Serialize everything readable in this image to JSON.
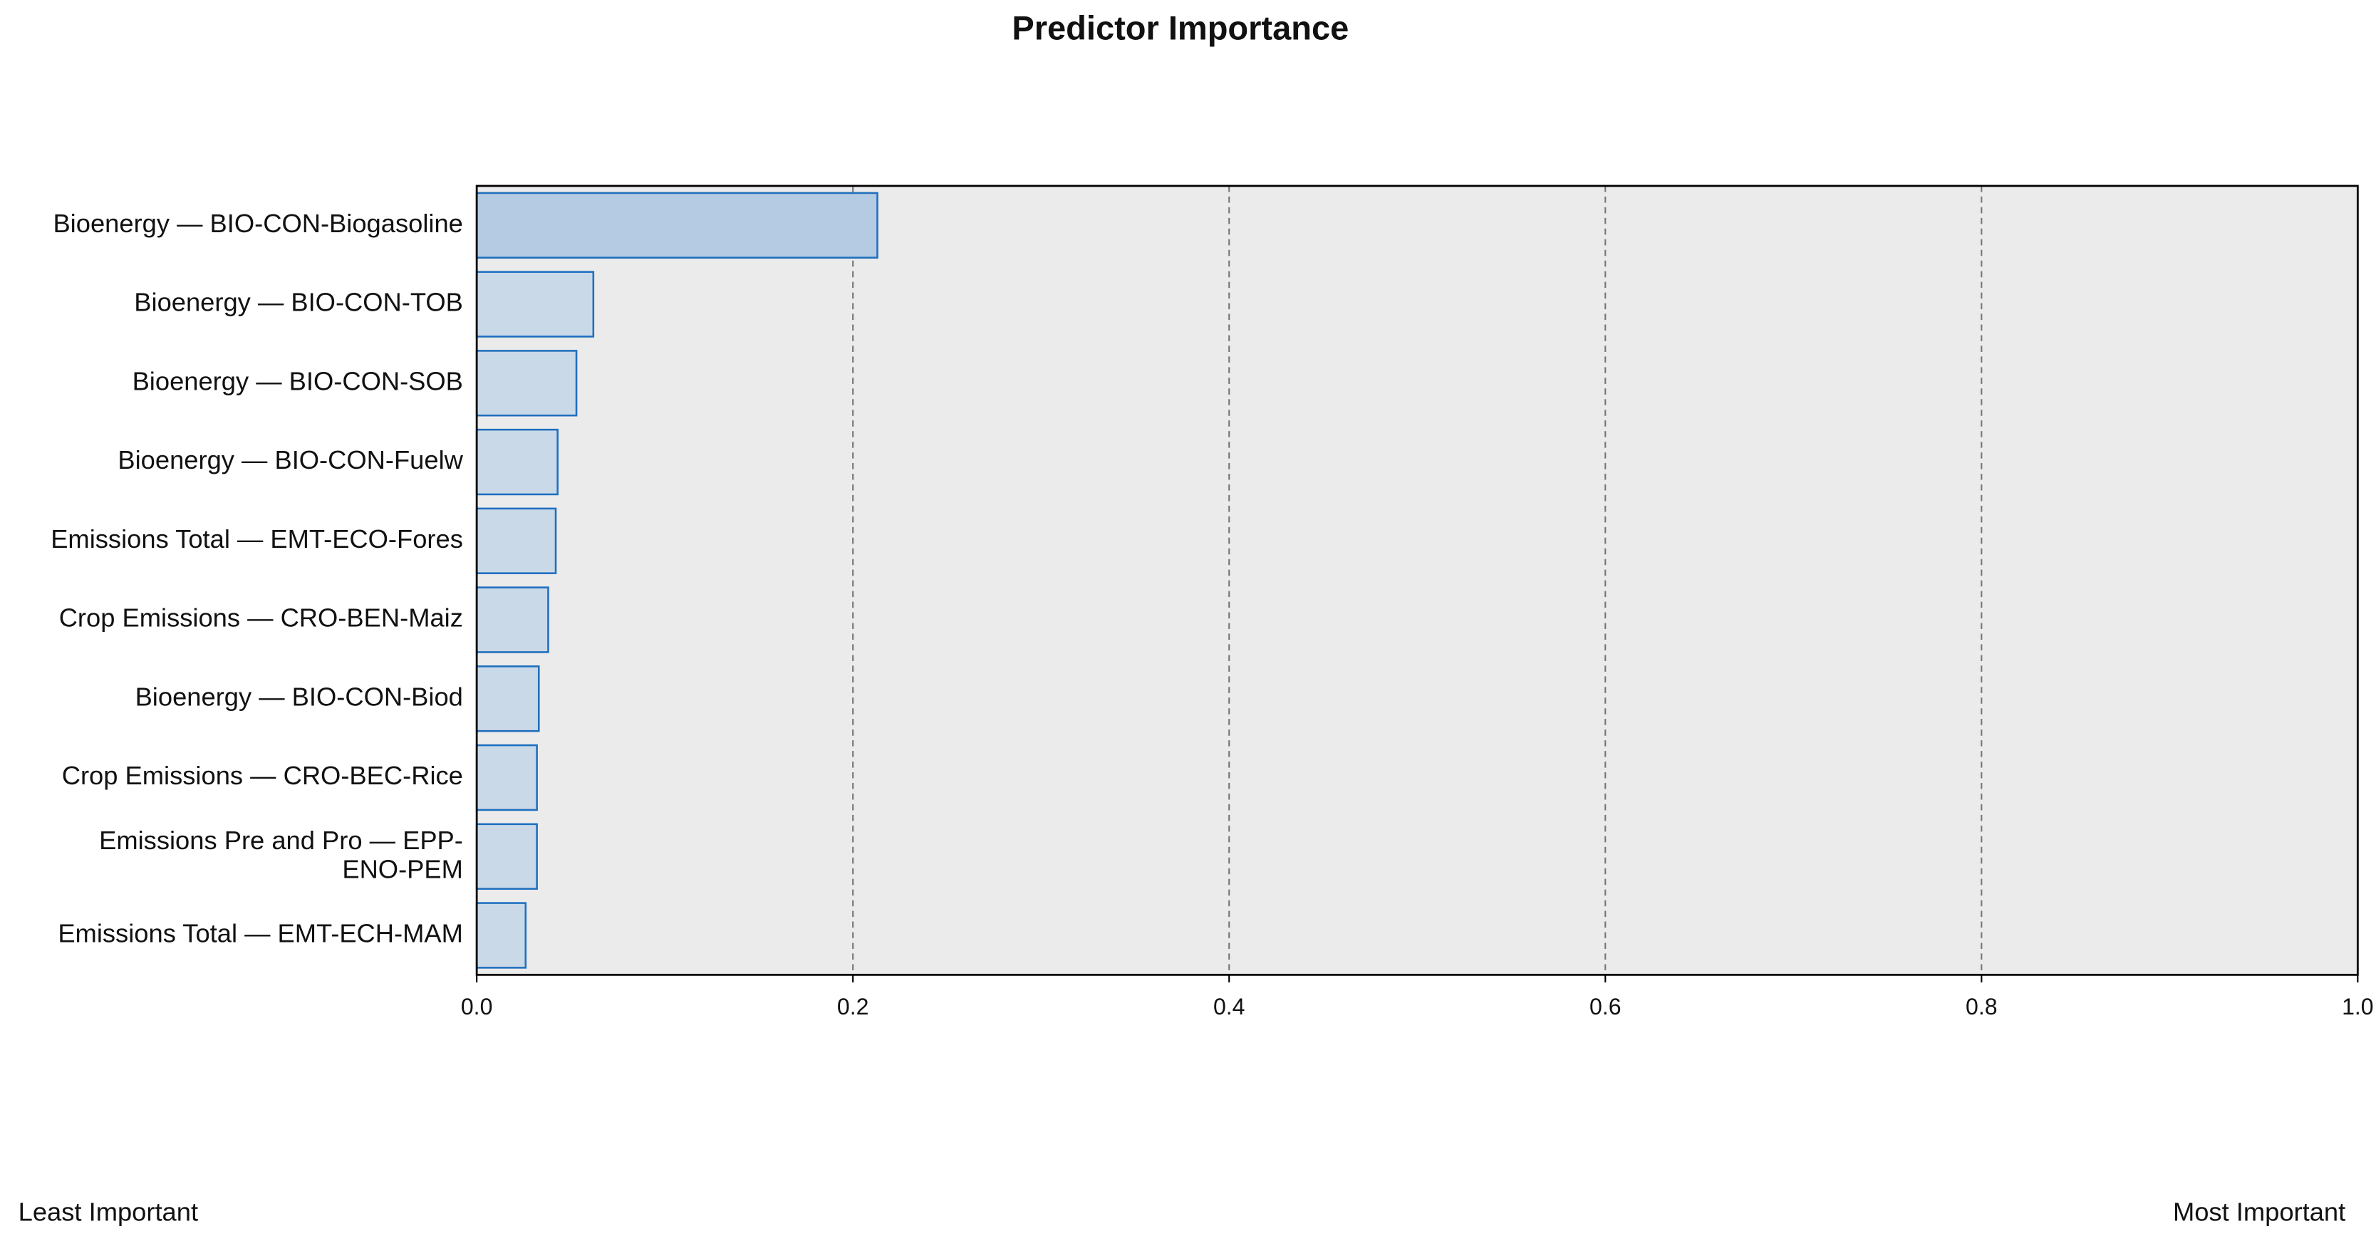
{
  "chart_data": {
    "type": "bar",
    "orientation": "horizontal",
    "title": "Predictor Importance",
    "categories": [
      "Bioenergy — BIO-CON-Biogasoline",
      "Bioenergy — BIO-CON-TOB",
      "Bioenergy — BIO-CON-SOB",
      "Bioenergy — BIO-CON-Fuelw",
      "Emissions Total — EMT-ECO-Fores",
      "Crop Emissions — CRO-BEN-Maiz",
      "Bioenergy — BIO-CON-Biod",
      "Crop Emissions — CRO-BEC-Rice",
      "Emissions Pre and Pro — EPP-\nENO-PEM",
      "Emissions Total — EMT-ECH-MAM"
    ],
    "values": [
      0.213,
      0.062,
      0.053,
      0.043,
      0.042,
      0.038,
      0.033,
      0.032,
      0.032,
      0.026
    ],
    "colors": [
      "#b4cbe3",
      "#cad9e8",
      "#cad9e8",
      "#cad9e8",
      "#cad9e8",
      "#cad9e8",
      "#cad9e8",
      "#cad9e8",
      "#cad9e8",
      "#cad9e8"
    ],
    "edge_color": "#1f6fbf",
    "xlim": [
      0,
      1
    ],
    "xticks": [
      {
        "value": 0,
        "label": "0.0"
      },
      0.2,
      0.4,
      0.6,
      0.8,
      {
        "value": 1,
        "label": "1.0"
      }
    ],
    "grid": true,
    "annotations": [
      "Least Important",
      "Most Important"
    ]
  }
}
